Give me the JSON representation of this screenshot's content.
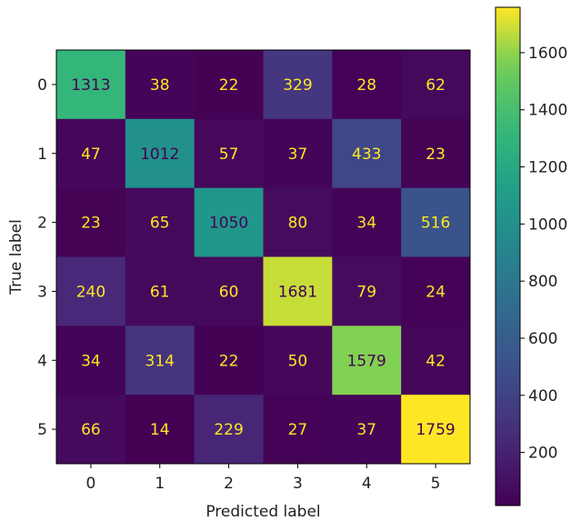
{
  "chart_data": {
    "type": "heatmap",
    "title": "",
    "xlabel": "Predicted label",
    "ylabel": "True label",
    "x_categories": [
      "0",
      "1",
      "2",
      "3",
      "4",
      "5"
    ],
    "y_categories": [
      "0",
      "1",
      "2",
      "3",
      "4",
      "5"
    ],
    "values": [
      [
        1313,
        38,
        22,
        329,
        28,
        62
      ],
      [
        47,
        1012,
        57,
        37,
        433,
        23
      ],
      [
        23,
        65,
        1050,
        80,
        34,
        516
      ],
      [
        240,
        61,
        60,
        1681,
        79,
        24
      ],
      [
        34,
        314,
        22,
        50,
        1579,
        42
      ],
      [
        66,
        14,
        229,
        27,
        37,
        1759
      ]
    ],
    "colormap": "viridis",
    "value_range": [
      14,
      1759
    ],
    "colorbar_ticks": [
      200,
      400,
      600,
      800,
      1000,
      1200,
      1400,
      1600
    ],
    "text_color_light": "#fde725",
    "text_color_dark": "#440154",
    "grid": false
  }
}
